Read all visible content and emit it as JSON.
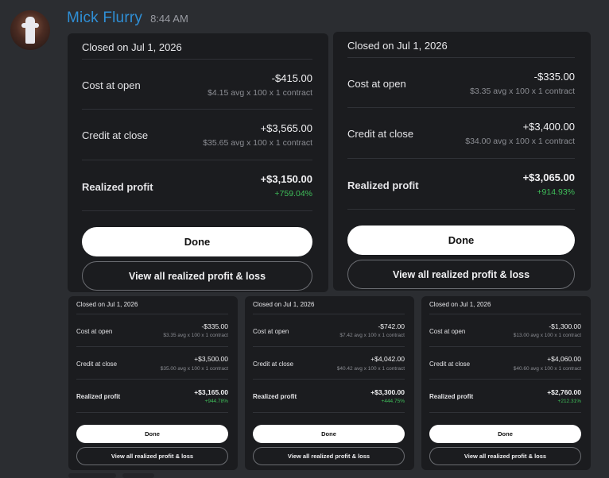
{
  "message": {
    "username": "Mick Flurry",
    "timestamp": "8:44 AM"
  },
  "cards": [
    {
      "closed": "Closed on Jul 1, 2026",
      "cost_label": "Cost at open",
      "cost_amount": "-$415.00",
      "cost_detail": "$4.15 avg x 100 x 1 contract",
      "credit_label": "Credit at close",
      "credit_amount": "+$3,565.00",
      "credit_detail": "$35.65 avg x 100 x 1 contract",
      "profit_label": "Realized profit",
      "profit_amount": "+$3,150.00",
      "profit_pct": "+759.04%",
      "done_label": "Done",
      "view_label": "View all realized profit & loss"
    },
    {
      "closed": "Closed on Jul 1, 2026",
      "cost_label": "Cost at open",
      "cost_amount": "-$335.00",
      "cost_detail": "$3.35 avg x 100 x 1 contract",
      "credit_label": "Credit at close",
      "credit_amount": "+$3,400.00",
      "credit_detail": "$34.00 avg x 100 x 1 contract",
      "profit_label": "Realized profit",
      "profit_amount": "+$3,065.00",
      "profit_pct": "+914.93%",
      "done_label": "Done",
      "view_label": "View all realized profit & loss"
    },
    {
      "closed": "Closed on Jul 1, 2026",
      "cost_label": "Cost at open",
      "cost_amount": "-$335.00",
      "cost_detail": "$3.35 avg x 100 x 1 contract",
      "credit_label": "Credit at close",
      "credit_amount": "+$3,500.00",
      "credit_detail": "$35.00 avg x 100 x 1 contract",
      "profit_label": "Realized profit",
      "profit_amount": "+$3,165.00",
      "profit_pct": "+944.78%",
      "done_label": "Done",
      "view_label": "View all realized profit & loss"
    },
    {
      "closed": "Closed on Jul 1, 2026",
      "cost_label": "Cost at open",
      "cost_amount": "-$742.00",
      "cost_detail": "$7.42 avg x 100 x 1 contract",
      "credit_label": "Credit at close",
      "credit_amount": "+$4,042.00",
      "credit_detail": "$40.42 avg x 100 x 1 contract",
      "profit_label": "Realized profit",
      "profit_amount": "+$3,300.00",
      "profit_pct": "+444.75%",
      "done_label": "Done",
      "view_label": "View all realized profit & loss"
    },
    {
      "closed": "Closed on Jul 1, 2026",
      "cost_label": "Cost at open",
      "cost_amount": "-$1,300.00",
      "cost_detail": "$13.00 avg x 100 x 1 contract",
      "credit_label": "Credit at close",
      "credit_amount": "+$4,060.00",
      "credit_detail": "$40.60 avg x 100 x 1 contract",
      "profit_label": "Realized profit",
      "profit_amount": "+$2,760.00",
      "profit_pct": "+212.31%",
      "done_label": "Done",
      "view_label": "View all realized profit & loss"
    }
  ],
  "colors": {
    "background": "#2b2d31",
    "card": "#1b1c1f",
    "username": "#2f8fd6",
    "profit_green": "#3fbf5a"
  }
}
